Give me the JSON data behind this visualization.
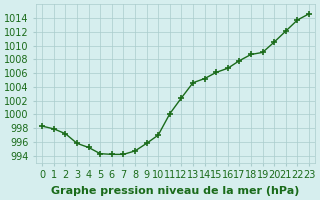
{
  "x": [
    0,
    1,
    2,
    3,
    4,
    5,
    6,
    7,
    8,
    9,
    10,
    11,
    12,
    13,
    14,
    15,
    16,
    17,
    18,
    19,
    20,
    21,
    22,
    23
  ],
  "y": [
    998.3,
    997.9,
    997.2,
    995.8,
    995.2,
    994.3,
    994.2,
    994.2,
    994.7,
    995.8,
    997.0,
    1000.1,
    1002.4,
    1004.6,
    1005.2,
    1006.1,
    1006.7,
    1007.8,
    1008.7,
    1009.0,
    1010.5,
    1012.1,
    1013.7,
    1014.6
  ],
  "line_color": "#1a6b1a",
  "marker_color": "#1a6b1a",
  "background_color": "#d6eeee",
  "grid_color": "#aacccc",
  "xlabel": "Graphe pression niveau de la mer (hPa)",
  "xlabel_fontsize": 8,
  "ylabel_ticks": [
    994,
    996,
    998,
    1000,
    1002,
    1004,
    1006,
    1008,
    1010,
    1012,
    1014
  ],
  "ylim": [
    993,
    1016
  ],
  "xlim": [
    -0.5,
    23.5
  ],
  "tick_fontsize": 7,
  "label_color": "#1a6b1a"
}
